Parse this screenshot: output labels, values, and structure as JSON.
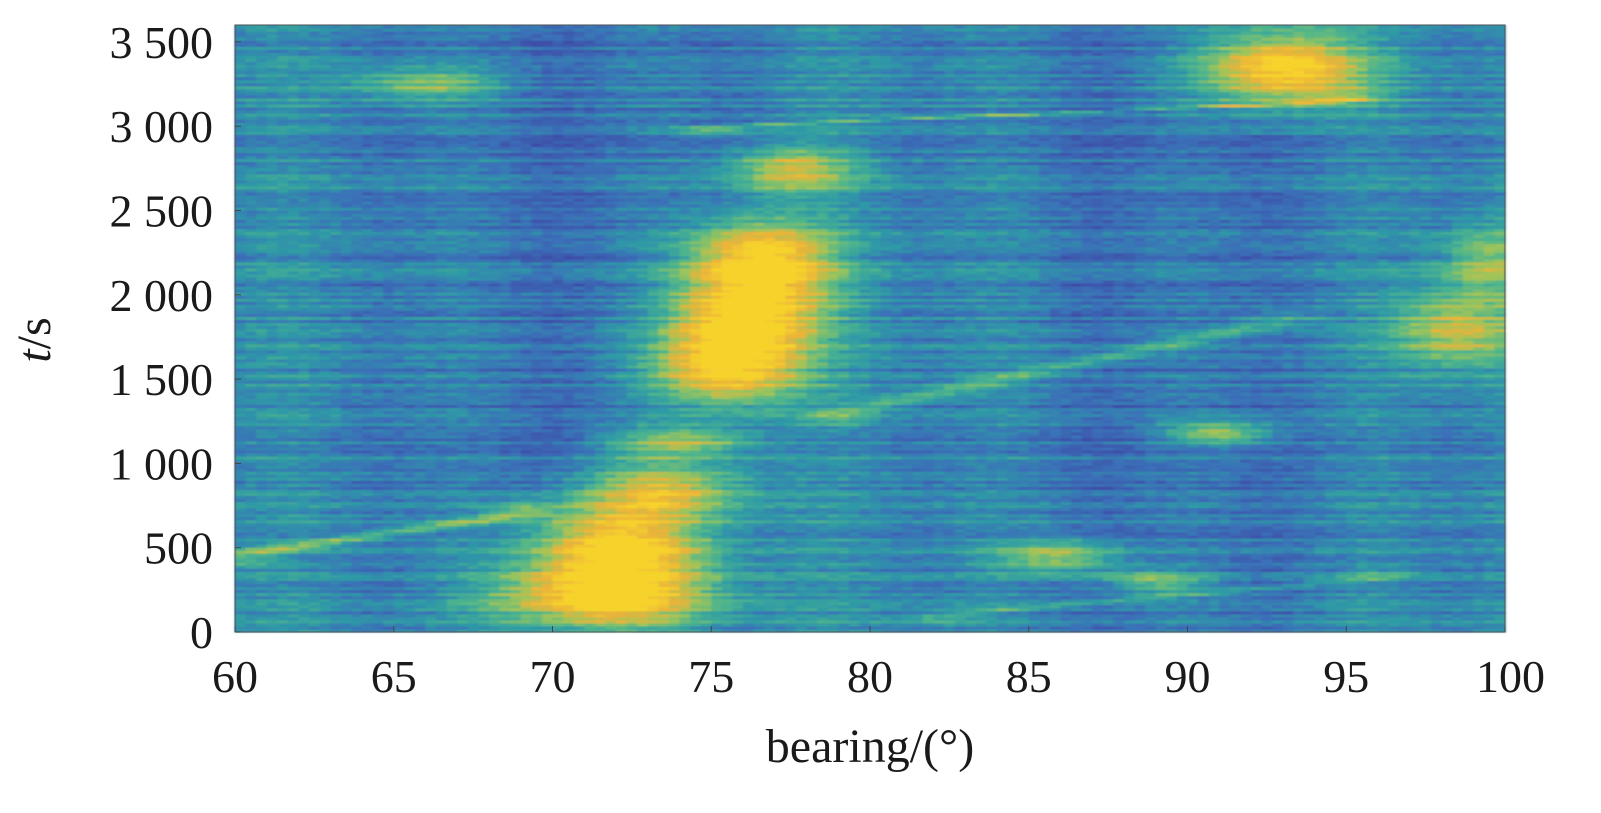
{
  "chart_data": {
    "type": "heatmap",
    "title": "",
    "xlabel": "bearing/(°)",
    "ylabel_italic": "t",
    "ylabel_rest": "/s",
    "xlim": [
      60,
      100
    ],
    "ylim": [
      0,
      3600
    ],
    "x_ticks": [
      60,
      65,
      70,
      75,
      80,
      85,
      90,
      95,
      100
    ],
    "x_tick_labels": [
      "60",
      "65",
      "70",
      "75",
      "80",
      "85",
      "90",
      "95",
      "100"
    ],
    "y_ticks": [
      0,
      500,
      1000,
      1500,
      2000,
      2500,
      3000,
      3500
    ],
    "y_tick_labels": [
      "0",
      "500",
      "1 000",
      "1 500",
      "2 000",
      "2 500",
      "3 000",
      "3 500"
    ],
    "colormap": [
      "#3d4ea8",
      "#3a72b8",
      "#2e9aa6",
      "#4fb58c",
      "#9ec45a",
      "#eab33a",
      "#f6d32c"
    ],
    "grid": false,
    "legend": "none",
    "hotspots": [
      {
        "bearing": 72.0,
        "t": 500,
        "intensity": 1.0,
        "spread_deg": 2.0,
        "spread_t": 180
      },
      {
        "bearing": 71.5,
        "t": 200,
        "intensity": 0.9,
        "spread_deg": 2.4,
        "spread_t": 130
      },
      {
        "bearing": 73.5,
        "t": 850,
        "intensity": 0.65,
        "spread_deg": 1.8,
        "spread_t": 120
      },
      {
        "bearing": 74.0,
        "t": 1130,
        "intensity": 0.6,
        "spread_deg": 1.6,
        "spread_t": 60
      },
      {
        "bearing": 75.5,
        "t": 1550,
        "intensity": 0.9,
        "spread_deg": 1.6,
        "spread_t": 150
      },
      {
        "bearing": 76.0,
        "t": 1850,
        "intensity": 0.95,
        "spread_deg": 1.6,
        "spread_t": 160
      },
      {
        "bearing": 76.5,
        "t": 2200,
        "intensity": 1.0,
        "spread_deg": 1.6,
        "spread_t": 170
      },
      {
        "bearing": 77.5,
        "t": 2750,
        "intensity": 0.6,
        "spread_deg": 1.4,
        "spread_t": 100
      },
      {
        "bearing": 93.0,
        "t": 3350,
        "intensity": 1.0,
        "spread_deg": 1.8,
        "spread_t": 160
      },
      {
        "bearing": 91.0,
        "t": 1180,
        "intensity": 0.6,
        "spread_deg": 1.2,
        "spread_t": 50
      },
      {
        "bearing": 86.0,
        "t": 450,
        "intensity": 0.55,
        "spread_deg": 1.4,
        "spread_t": 70
      },
      {
        "bearing": 89.0,
        "t": 300,
        "intensity": 0.45,
        "spread_deg": 1.2,
        "spread_t": 50
      },
      {
        "bearing": 98.5,
        "t": 1800,
        "intensity": 0.6,
        "spread_deg": 1.4,
        "spread_t": 160
      },
      {
        "bearing": 99.5,
        "t": 2200,
        "intensity": 0.45,
        "spread_deg": 1.0,
        "spread_t": 150
      },
      {
        "bearing": 66.0,
        "t": 3250,
        "intensity": 0.45,
        "spread_deg": 1.6,
        "spread_t": 70
      }
    ],
    "tracks": [
      {
        "from": [
          60,
          460
        ],
        "to": [
          69,
          700
        ],
        "intensity": 0.6,
        "width_t": 45
      },
      {
        "from": [
          75,
          3000
        ],
        "to": [
          95,
          3150
        ],
        "intensity": 0.6,
        "width_t": 40
      },
      {
        "from": [
          79,
          1300
        ],
        "to": [
          93,
          1850
        ],
        "intensity": 0.45,
        "width_t": 45
      },
      {
        "from": [
          82,
          100
        ],
        "to": [
          96,
          320
        ],
        "intensity": 0.35,
        "width_t": 40
      }
    ]
  }
}
